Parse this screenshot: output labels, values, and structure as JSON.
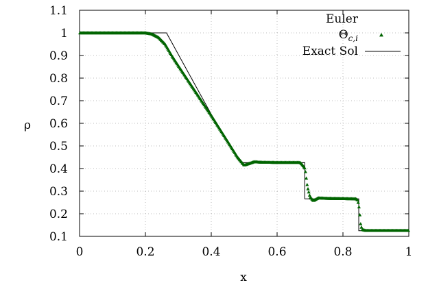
{
  "chart_data": {
    "type": "scatter",
    "title": "",
    "xlabel": "x",
    "ylabel": "ρ",
    "xlim": [
      0,
      1
    ],
    "ylim": [
      0.1,
      1.1
    ],
    "xticks": [
      "0",
      "0.2",
      "0.4",
      "0.6",
      "0.8",
      "1"
    ],
    "yticks": [
      "0.1",
      "0.2",
      "0.3",
      "0.4",
      "0.5",
      "0.6",
      "0.7",
      "0.8",
      "0.9",
      "1",
      "1.1"
    ],
    "grid": true,
    "legend": {
      "placement": "top-right",
      "title": "Euler",
      "entries": [
        {
          "label": "Θ",
          "subscript": "c,i",
          "marker": "triangle",
          "color": "#006400"
        },
        {
          "label": "Exact Sol",
          "marker": "line",
          "color": "#000000"
        }
      ]
    },
    "series": [
      {
        "name": "Θc,i",
        "style": "points",
        "color": "#006400",
        "n_points": 400,
        "profile": [
          [
            0,
            1.0
          ],
          [
            0.2,
            1.0
          ],
          [
            0.22,
            0.995
          ],
          [
            0.24,
            0.98
          ],
          [
            0.26,
            0.95
          ],
          [
            0.28,
            0.9
          ],
          [
            0.3,
            0.855
          ],
          [
            0.35,
            0.745
          ],
          [
            0.4,
            0.635
          ],
          [
            0.45,
            0.52
          ],
          [
            0.48,
            0.45
          ],
          [
            0.5,
            0.415
          ],
          [
            0.52,
            0.425
          ],
          [
            0.53,
            0.43
          ],
          [
            0.55,
            0.428
          ],
          [
            0.6,
            0.427
          ],
          [
            0.67,
            0.427
          ],
          [
            0.675,
            0.42
          ],
          [
            0.685,
            0.4
          ],
          [
            0.692,
            0.32
          ],
          [
            0.7,
            0.275
          ],
          [
            0.71,
            0.258
          ],
          [
            0.725,
            0.27
          ],
          [
            0.75,
            0.268
          ],
          [
            0.8,
            0.267
          ],
          [
            0.84,
            0.266
          ],
          [
            0.845,
            0.26
          ],
          [
            0.85,
            0.22
          ],
          [
            0.853,
            0.16
          ],
          [
            0.858,
            0.13
          ],
          [
            0.87,
            0.126
          ],
          [
            1.0,
            0.126
          ]
        ]
      },
      {
        "name": "Exact Sol",
        "style": "line",
        "color": "#000000",
        "points": [
          [
            0,
            1.0
          ],
          [
            0.264,
            1.0
          ],
          [
            0.4,
            0.64
          ],
          [
            0.49,
            0.426
          ],
          [
            0.684,
            0.426
          ],
          [
            0.684,
            0.266
          ],
          [
            0.848,
            0.266
          ],
          [
            0.848,
            0.125
          ],
          [
            1.0,
            0.125
          ]
        ]
      }
    ]
  }
}
